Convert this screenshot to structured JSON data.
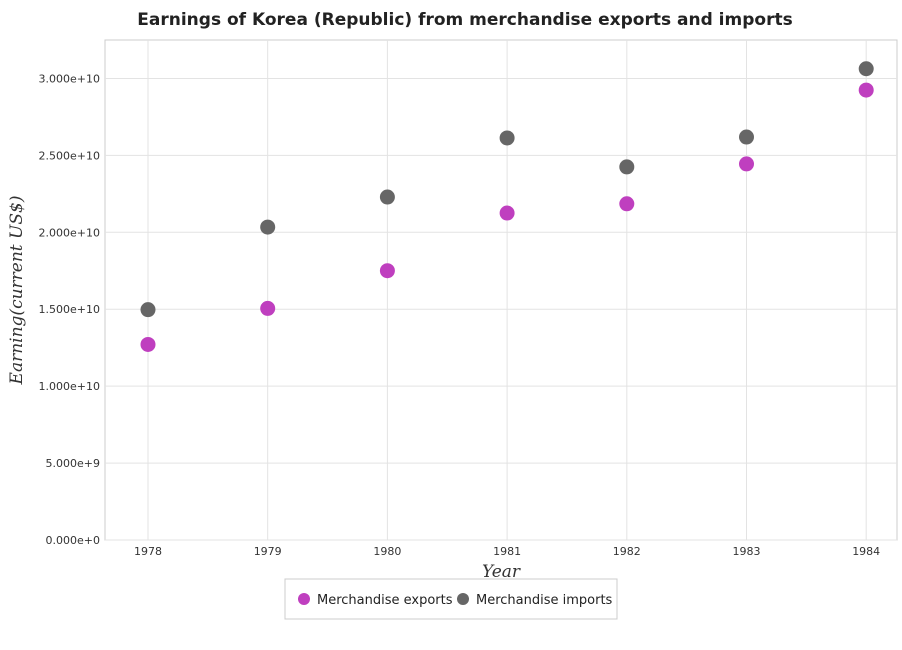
{
  "chart_data": {
    "type": "scatter",
    "title": "Earnings of Korea (Republic) from merchandise exports and imports",
    "xlabel": "Year",
    "ylabel": "Earning(current US$)",
    "categories": [
      "1978",
      "1979",
      "1980",
      "1981",
      "1982",
      "1983",
      "1984"
    ],
    "ylim": [
      0,
      32500000000
    ],
    "yticks": [
      0,
      5000000000,
      10000000000,
      15000000000,
      20000000000,
      25000000000,
      30000000000
    ],
    "ytick_labels": [
      "0.000e+0",
      "5.000e+9",
      "1.000e+10",
      "1.500e+10",
      "2.000e+10",
      "2.500e+10",
      "3.000e+10"
    ],
    "grid": true,
    "legend_position": "bottom-center",
    "series": [
      {
        "name": "Merchandise exports",
        "color": "#bf3fbf",
        "values": [
          12710000000,
          15055000000,
          17505000000,
          21254000000,
          21853000000,
          24445000000,
          29245000000
        ]
      },
      {
        "name": "Merchandise imports",
        "color": "#666666",
        "values": [
          14972000000,
          20339000000,
          22292000000,
          26131000000,
          24251000000,
          26192000000,
          30631000000
        ]
      }
    ]
  }
}
